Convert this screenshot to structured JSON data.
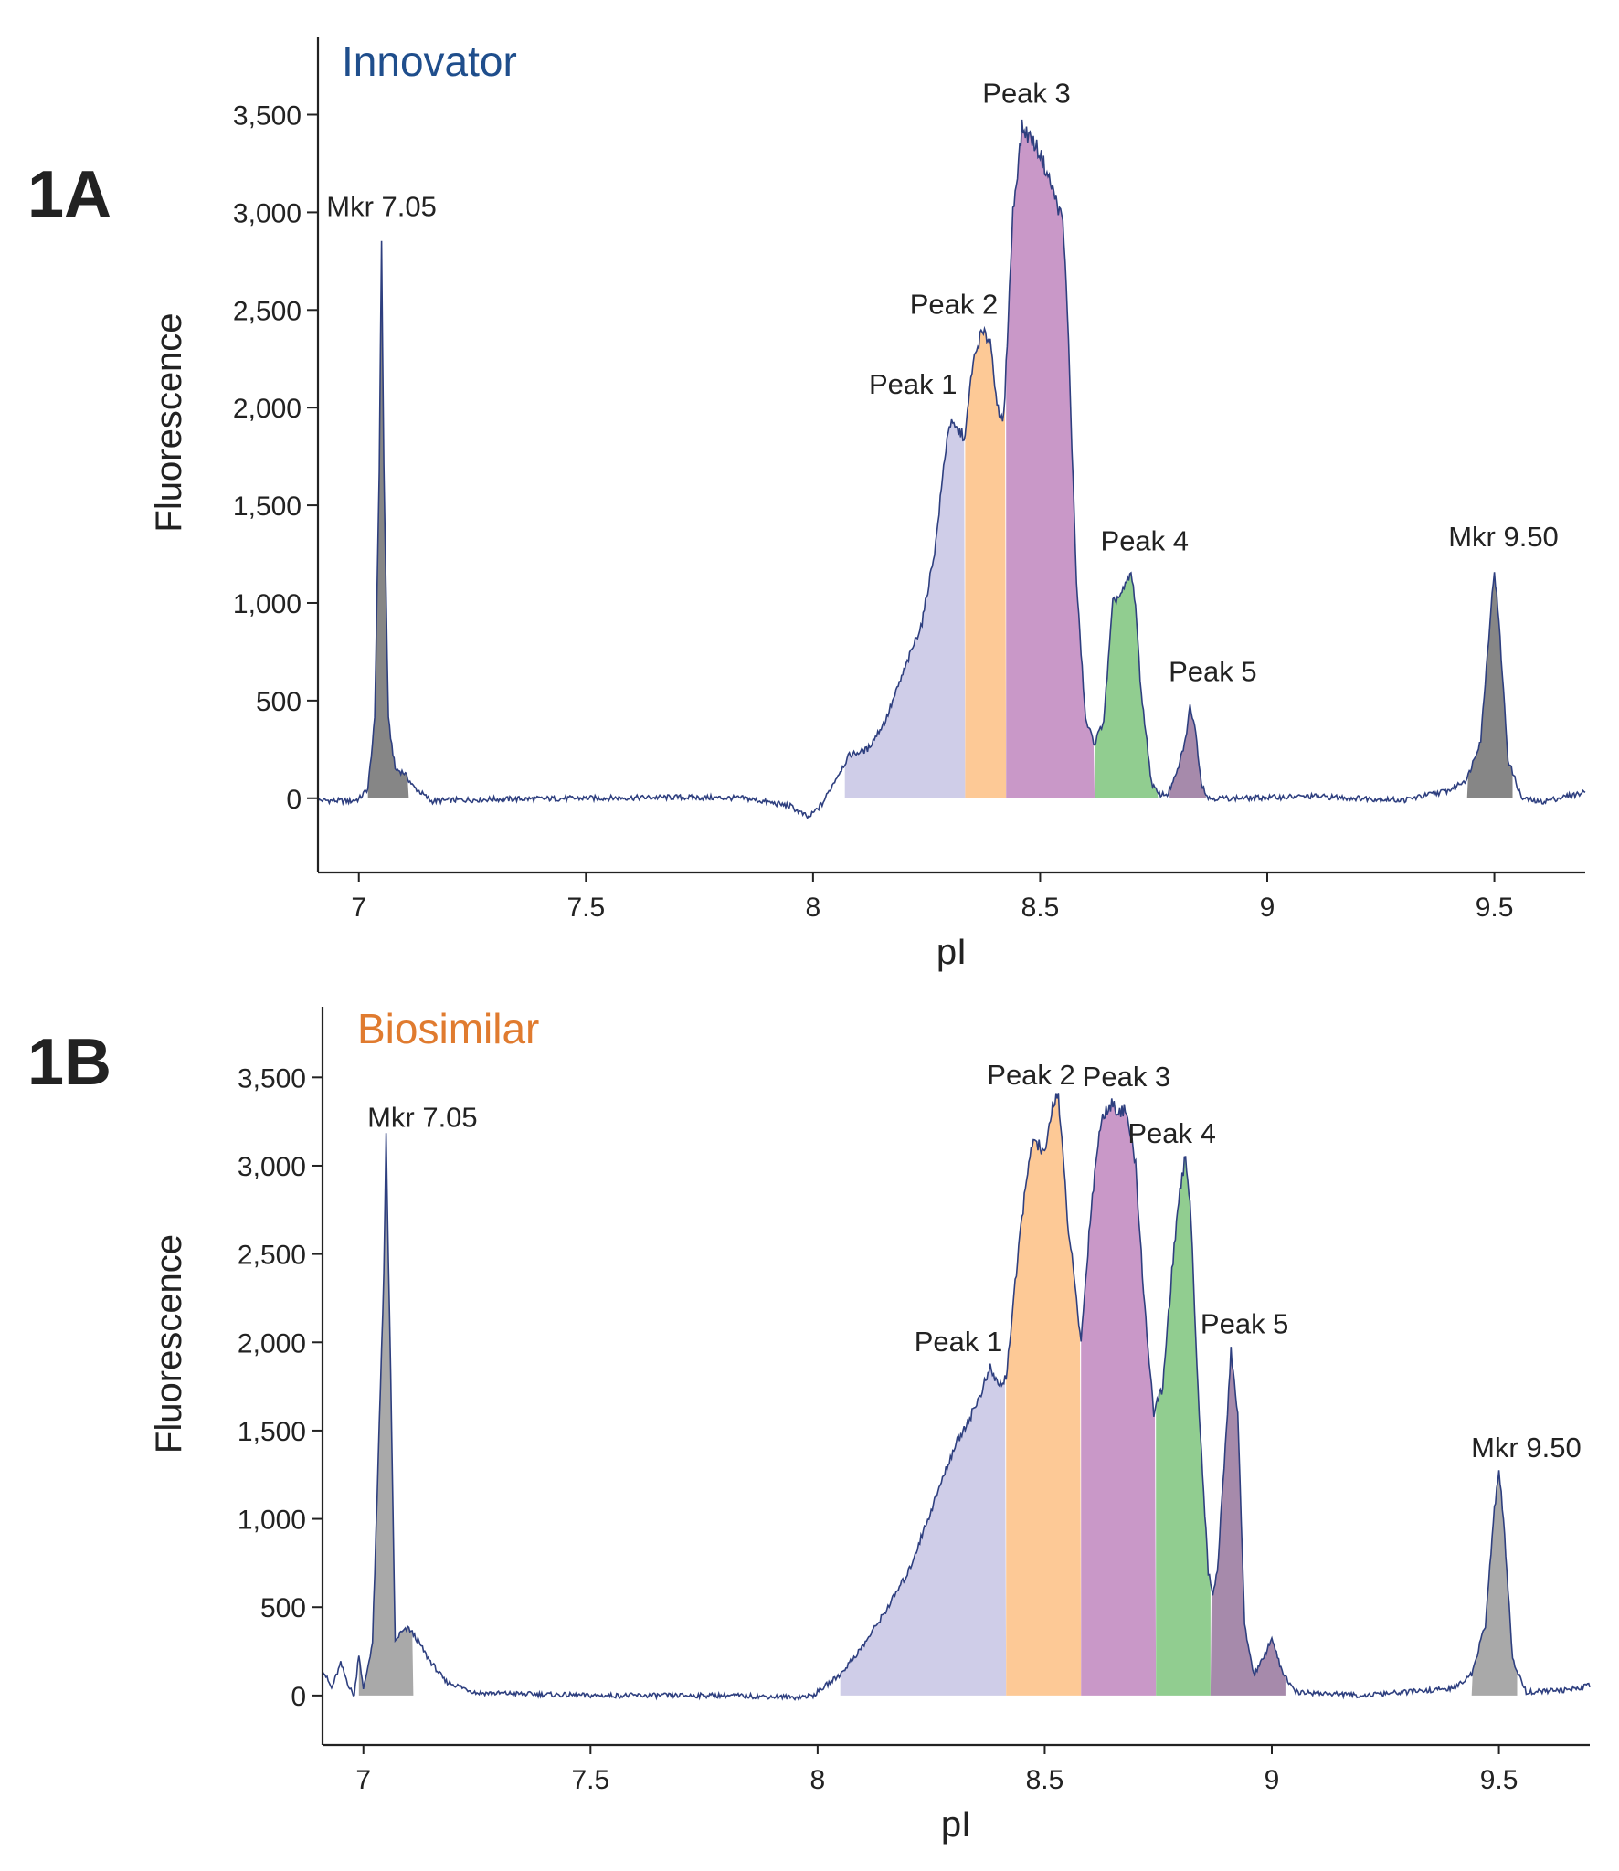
{
  "chart_data": [
    {
      "panel": "1A",
      "type": "area",
      "title": "Innovator",
      "title_color": "#1f4e8c",
      "xlabel": "pI",
      "ylabel": "Fluorescence",
      "xlim": [
        6.91,
        9.7
      ],
      "ylim": [
        -380,
        3900
      ],
      "x_ticks": [
        7,
        7.5,
        8,
        8.5,
        9,
        9.5
      ],
      "x_tick_labels": [
        "7",
        "7.5",
        "8",
        "8.5",
        "9",
        "9.5"
      ],
      "y_ticks": [
        0,
        500,
        1000,
        1500,
        2000,
        2500,
        3000,
        3500
      ],
      "y_tick_labels": [
        "0",
        "500",
        "1,000",
        "1,500",
        "2,000",
        "2,500",
        "3,000",
        "3,500"
      ],
      "line_color": "#2e3f7f",
      "trace": [
        [
          6.91,
          -10
        ],
        [
          6.98,
          -15
        ],
        [
          7.0,
          -5
        ],
        [
          7.02,
          50
        ],
        [
          7.035,
          400
        ],
        [
          7.045,
          1700
        ],
        [
          7.05,
          2870
        ],
        [
          7.055,
          1700
        ],
        [
          7.065,
          400
        ],
        [
          7.08,
          150
        ],
        [
          7.1,
          130
        ],
        [
          7.12,
          60
        ],
        [
          7.16,
          -15
        ],
        [
          7.2,
          -10
        ],
        [
          7.3,
          -5
        ],
        [
          7.5,
          0
        ],
        [
          7.7,
          5
        ],
        [
          7.85,
          0
        ],
        [
          7.95,
          -40
        ],
        [
          7.99,
          -100
        ],
        [
          8.02,
          -30
        ],
        [
          8.05,
          100
        ],
        [
          8.08,
          220
        ],
        [
          8.12,
          250
        ],
        [
          8.16,
          400
        ],
        [
          8.2,
          650
        ],
        [
          8.24,
          900
        ],
        [
          8.27,
          1300
        ],
        [
          8.29,
          1750
        ],
        [
          8.3,
          1920
        ],
        [
          8.32,
          1880
        ],
        [
          8.335,
          1850
        ],
        [
          8.35,
          2200
        ],
        [
          8.37,
          2380
        ],
        [
          8.39,
          2350
        ],
        [
          8.41,
          1930
        ],
        [
          8.42,
          1950
        ],
        [
          8.44,
          3000
        ],
        [
          8.46,
          3430
        ],
        [
          8.48,
          3380
        ],
        [
          8.5,
          3300
        ],
        [
          8.53,
          3100
        ],
        [
          8.55,
          2950
        ],
        [
          8.56,
          2500
        ],
        [
          8.58,
          1100
        ],
        [
          8.6,
          400
        ],
        [
          8.62,
          280
        ],
        [
          8.64,
          400
        ],
        [
          8.66,
          1000
        ],
        [
          8.68,
          1050
        ],
        [
          8.7,
          1150
        ],
        [
          8.71,
          1000
        ],
        [
          8.72,
          600
        ],
        [
          8.745,
          80
        ],
        [
          8.76,
          20
        ],
        [
          8.78,
          20
        ],
        [
          8.8,
          120
        ],
        [
          8.82,
          300
        ],
        [
          8.83,
          470
        ],
        [
          8.84,
          380
        ],
        [
          8.855,
          80
        ],
        [
          8.87,
          0
        ],
        [
          8.95,
          0
        ],
        [
          9.1,
          10
        ],
        [
          9.3,
          -10
        ],
        [
          9.4,
          40
        ],
        [
          9.44,
          100
        ],
        [
          9.47,
          300
        ],
        [
          9.49,
          900
        ],
        [
          9.5,
          1170
        ],
        [
          9.51,
          900
        ],
        [
          9.53,
          200
        ],
        [
          9.56,
          0
        ],
        [
          9.6,
          -20
        ],
        [
          9.7,
          30
        ]
      ],
      "regions": [
        {
          "label": "Mkr 7.05",
          "from": 7.02,
          "to": 7.11,
          "color": "#868686"
        },
        {
          "label": "Peak 1",
          "from": 8.07,
          "to": 8.335,
          "color": "#cfcde8"
        },
        {
          "label": "Peak 2",
          "from": 8.335,
          "to": 8.425,
          "color": "#fdc996"
        },
        {
          "label": "Peak 3",
          "from": 8.425,
          "to": 8.62,
          "color": "#c998c8"
        },
        {
          "label": "Peak 4",
          "from": 8.62,
          "to": 8.76,
          "color": "#91cd90"
        },
        {
          "label": "Peak 5",
          "from": 8.785,
          "to": 8.865,
          "color": "#a68aab"
        },
        {
          "label": "Mkr 9.50",
          "from": 9.44,
          "to": 9.54,
          "color": "#868686"
        }
      ],
      "annotations": [
        {
          "text": "Mkr 7.05",
          "x": 7.05,
          "y": 2980
        },
        {
          "text": "Peak 1",
          "x": 8.22,
          "y": 2070
        },
        {
          "text": "Peak 2",
          "x": 8.31,
          "y": 2480
        },
        {
          "text": "Peak 3",
          "x": 8.47,
          "y": 3560
        },
        {
          "text": "Peak 4",
          "x": 8.73,
          "y": 1270
        },
        {
          "text": "Peak 5",
          "x": 8.88,
          "y": 600
        },
        {
          "text": "Mkr 9.50",
          "x": 9.52,
          "y": 1290
        }
      ]
    },
    {
      "panel": "1B",
      "type": "area",
      "title": "Biosimilar",
      "title_color": "#e07b2f",
      "xlabel": "pI",
      "ylabel": "Fluorescence",
      "xlim": [
        6.91,
        9.7
      ],
      "ylim": [
        -280,
        3900
      ],
      "x_ticks": [
        7,
        7.5,
        8,
        8.5,
        9,
        9.5
      ],
      "x_tick_labels": [
        "7",
        "7.5",
        "8",
        "8.5",
        "9",
        "9.5"
      ],
      "y_ticks": [
        0,
        500,
        1000,
        1500,
        2000,
        2500,
        3000,
        3500
      ],
      "y_tick_labels": [
        "0",
        "500",
        "1,000",
        "1,500",
        "2,000",
        "2,500",
        "3,000",
        "3,500"
      ],
      "line_color": "#2e3f7f",
      "trace": [
        [
          6.91,
          150
        ],
        [
          6.93,
          40
        ],
        [
          6.95,
          180
        ],
        [
          6.97,
          40
        ],
        [
          6.98,
          0
        ],
        [
          6.99,
          240
        ],
        [
          7.0,
          30
        ],
        [
          7.02,
          300
        ],
        [
          7.03,
          1100
        ],
        [
          7.045,
          2400
        ],
        [
          7.05,
          3150
        ],
        [
          7.06,
          1800
        ],
        [
          7.07,
          300
        ],
        [
          7.08,
          350
        ],
        [
          7.1,
          380
        ],
        [
          7.12,
          310
        ],
        [
          7.14,
          220
        ],
        [
          7.18,
          80
        ],
        [
          7.25,
          15
        ],
        [
          7.5,
          0
        ],
        [
          7.8,
          0
        ],
        [
          7.95,
          -10
        ],
        [
          7.99,
          0
        ],
        [
          8.05,
          120
        ],
        [
          8.1,
          280
        ],
        [
          8.15,
          480
        ],
        [
          8.2,
          700
        ],
        [
          8.25,
          1050
        ],
        [
          8.3,
          1400
        ],
        [
          8.35,
          1650
        ],
        [
          8.38,
          1850
        ],
        [
          8.4,
          1750
        ],
        [
          8.415,
          1800
        ],
        [
          8.43,
          2200
        ],
        [
          8.46,
          2950
        ],
        [
          8.47,
          3070
        ],
        [
          8.48,
          3150
        ],
        [
          8.5,
          3050
        ],
        [
          8.52,
          3380
        ],
        [
          8.53,
          3400
        ],
        [
          8.55,
          2700
        ],
        [
          8.58,
          2000
        ],
        [
          8.6,
          2700
        ],
        [
          8.62,
          3200
        ],
        [
          8.64,
          3350
        ],
        [
          8.68,
          3300
        ],
        [
          8.7,
          3000
        ],
        [
          8.72,
          2200
        ],
        [
          8.74,
          1600
        ],
        [
          8.76,
          1750
        ],
        [
          8.78,
          2400
        ],
        [
          8.8,
          2900
        ],
        [
          8.81,
          3050
        ],
        [
          8.82,
          2800
        ],
        [
          8.84,
          1600
        ],
        [
          8.86,
          700
        ],
        [
          8.87,
          580
        ],
        [
          8.88,
          700
        ],
        [
          8.9,
          1500
        ],
        [
          8.91,
          1950
        ],
        [
          8.925,
          1600
        ],
        [
          8.94,
          400
        ],
        [
          8.96,
          120
        ],
        [
          8.98,
          200
        ],
        [
          9.0,
          330
        ],
        [
          9.02,
          150
        ],
        [
          9.05,
          20
        ],
        [
          9.2,
          0
        ],
        [
          9.4,
          40
        ],
        [
          9.44,
          120
        ],
        [
          9.47,
          400
        ],
        [
          9.49,
          1050
        ],
        [
          9.5,
          1270
        ],
        [
          9.51,
          1000
        ],
        [
          9.53,
          200
        ],
        [
          9.56,
          20
        ],
        [
          9.65,
          30
        ],
        [
          9.7,
          60
        ]
      ],
      "regions": [
        {
          "label": "Mkr 7.05",
          "from": 6.99,
          "to": 7.11,
          "color": "#a9a9a9"
        },
        {
          "label": "Peak 1",
          "from": 8.05,
          "to": 8.415,
          "color": "#cfcde8"
        },
        {
          "label": "Peak 2",
          "from": 8.415,
          "to": 8.58,
          "color": "#fdc996"
        },
        {
          "label": "Peak 3",
          "from": 8.58,
          "to": 8.745,
          "color": "#c998c8"
        },
        {
          "label": "Peak 4",
          "from": 8.745,
          "to": 8.865,
          "color": "#91cd90"
        },
        {
          "label": "Peak 5",
          "from": 8.865,
          "to": 9.03,
          "color": "#a68aab"
        },
        {
          "label": "Mkr 9.50",
          "from": 9.44,
          "to": 9.54,
          "color": "#a9a9a9"
        }
      ],
      "annotations": [
        {
          "text": "Mkr 7.05",
          "x": 7.13,
          "y": 3220
        },
        {
          "text": "Peak 1",
          "x": 8.31,
          "y": 1950
        },
        {
          "text": "Peak 2",
          "x": 8.47,
          "y": 3460
        },
        {
          "text": "Peak 3",
          "x": 8.68,
          "y": 3450
        },
        {
          "text": "Peak 4",
          "x": 8.78,
          "y": 3130
        },
        {
          "text": "Peak 5",
          "x": 8.94,
          "y": 2050
        },
        {
          "text": "Mkr 9.50",
          "x": 9.56,
          "y": 1350
        }
      ]
    }
  ],
  "panels": [
    {
      "label": "1A"
    },
    {
      "label": "1B"
    }
  ]
}
